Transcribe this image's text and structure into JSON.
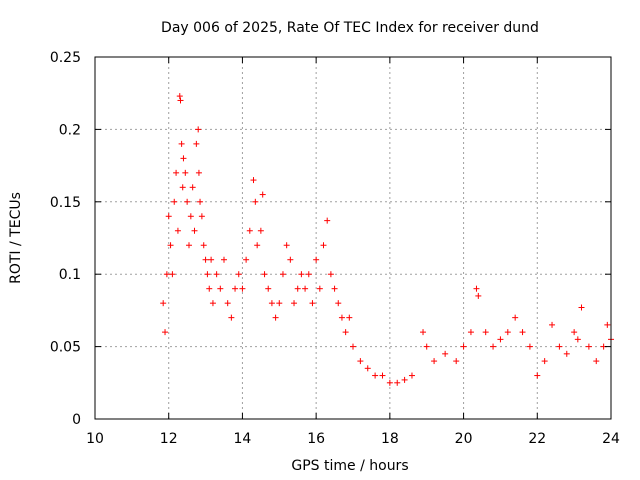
{
  "chart_data": {
    "type": "scatter",
    "title": "Day 006 of 2025, Rate Of TEC Index for receiver dund",
    "xlabel": "GPS time / hours",
    "ylabel": "ROTI / TECUs",
    "xlim": [
      10,
      24
    ],
    "ylim": [
      0,
      0.25
    ],
    "x_ticks": [
      10,
      12,
      14,
      16,
      18,
      20,
      22,
      24
    ],
    "y_ticks": [
      0,
      0.05,
      0.1,
      0.15,
      0.2,
      0.25
    ],
    "y_tick_labels": [
      "0",
      "0.05",
      "0.1",
      "0.15",
      "0.2",
      "0.25"
    ],
    "grid": true,
    "marker": "plus",
    "color": "#ff0000",
    "series": [
      {
        "x": [
          11.85,
          11.9,
          11.95,
          12.0,
          12.05,
          12.1,
          12.15,
          12.2,
          12.25,
          12.3,
          12.32,
          12.35,
          12.38,
          12.4,
          12.45,
          12.5,
          12.55,
          12.6,
          12.65,
          12.7,
          12.75,
          12.8,
          12.82,
          12.85,
          12.9,
          12.95,
          13.0,
          13.05,
          13.1,
          13.15,
          13.2,
          13.3,
          13.4,
          13.5,
          13.6,
          13.7,
          13.8,
          13.9,
          14.0,
          14.1,
          14.2,
          14.3,
          14.35,
          14.4,
          14.5,
          14.55,
          14.6,
          14.7,
          14.8,
          14.9,
          15.0,
          15.1,
          15.2,
          15.3,
          15.4,
          15.5,
          15.6,
          15.7,
          15.8,
          15.9,
          16.0,
          16.1,
          16.2,
          16.3,
          16.4,
          16.5,
          16.6,
          16.7,
          16.8,
          16.9,
          17.0,
          17.2,
          17.4,
          17.6,
          17.8,
          18.0,
          18.2,
          18.4,
          18.6,
          18.9,
          19.0,
          19.2,
          19.5,
          19.8,
          20.0,
          20.2,
          20.35,
          20.4,
          20.6,
          20.8,
          21.0,
          21.2,
          21.4,
          21.6,
          21.8,
          22.0,
          22.2,
          22.4,
          22.6,
          22.8,
          23.0,
          23.1,
          23.2,
          23.4,
          23.6,
          23.8,
          23.9,
          24.0
        ],
        "y": [
          0.08,
          0.06,
          0.1,
          0.14,
          0.12,
          0.1,
          0.15,
          0.17,
          0.13,
          0.223,
          0.22,
          0.19,
          0.16,
          0.18,
          0.17,
          0.15,
          0.12,
          0.14,
          0.16,
          0.13,
          0.19,
          0.2,
          0.17,
          0.15,
          0.14,
          0.12,
          0.11,
          0.1,
          0.09,
          0.11,
          0.08,
          0.1,
          0.09,
          0.11,
          0.08,
          0.07,
          0.09,
          0.1,
          0.09,
          0.11,
          0.13,
          0.165,
          0.15,
          0.12,
          0.13,
          0.155,
          0.1,
          0.09,
          0.08,
          0.07,
          0.08,
          0.1,
          0.12,
          0.11,
          0.08,
          0.09,
          0.1,
          0.09,
          0.1,
          0.08,
          0.11,
          0.09,
          0.12,
          0.137,
          0.1,
          0.09,
          0.08,
          0.07,
          0.06,
          0.07,
          0.05,
          0.04,
          0.035,
          0.03,
          0.03,
          0.025,
          0.025,
          0.027,
          0.03,
          0.06,
          0.05,
          0.04,
          0.045,
          0.04,
          0.05,
          0.06,
          0.09,
          0.085,
          0.06,
          0.05,
          0.055,
          0.06,
          0.07,
          0.06,
          0.05,
          0.03,
          0.04,
          0.065,
          0.05,
          0.045,
          0.06,
          0.055,
          0.077,
          0.05,
          0.04,
          0.05,
          0.065,
          0.055
        ]
      }
    ]
  }
}
